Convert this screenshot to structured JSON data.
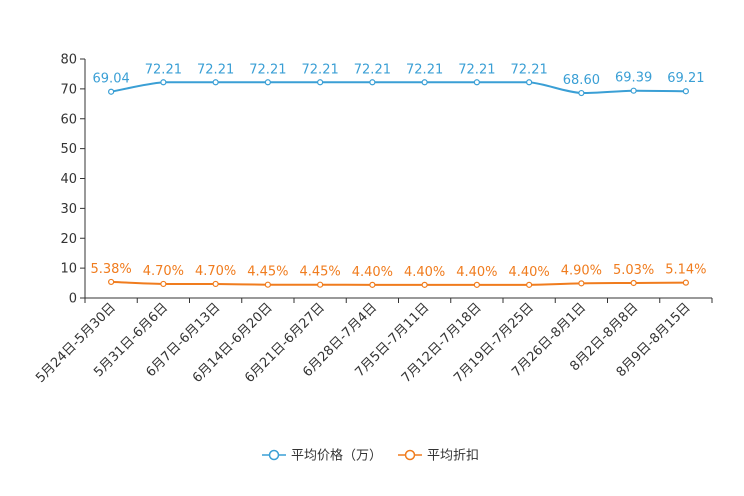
{
  "chart_data": {
    "type": "line",
    "title": "",
    "xlabel": "",
    "ylabel": "",
    "ylim": [
      0,
      80
    ],
    "yticks": [
      0,
      10,
      20,
      30,
      40,
      50,
      60,
      70,
      80
    ],
    "ytick_labels": [
      "0",
      "10",
      "20",
      "30",
      "40",
      "50",
      "60",
      "70",
      "80"
    ],
    "grid": false,
    "legend_position": "bottom-center",
    "categories": [
      "5月24日-5月30日",
      "5月31日-6月6日",
      "6月7日-6月13日",
      "6月14日-6月20日",
      "6月21日-6月27日",
      "6月28日-7月4日",
      "7月5日-7月11日",
      "7月12日-7月18日",
      "7月19日-7月25日",
      "7月26日-8月1日",
      "8月2日-8月8日",
      "8月9日-8月15日"
    ],
    "series": [
      {
        "name": "平均价格（万）",
        "color": "#3a9fd5",
        "values": [
          69.04,
          72.21,
          72.21,
          72.21,
          72.21,
          72.21,
          72.21,
          72.21,
          72.21,
          68.6,
          69.39,
          69.21
        ],
        "labels": [
          "69.04",
          "72.21",
          "72.21",
          "72.21",
          "72.21",
          "72.21",
          "72.21",
          "72.21",
          "72.21",
          "68.60",
          "69.39",
          "69.21"
        ]
      },
      {
        "name": "平均折扣",
        "color": "#f07c1e",
        "values": [
          5.38,
          4.7,
          4.7,
          4.45,
          4.45,
          4.4,
          4.4,
          4.4,
          4.4,
          4.9,
          5.03,
          5.14
        ],
        "labels": [
          "5.38%",
          "4.70%",
          "4.70%",
          "4.45%",
          "4.45%",
          "4.40%",
          "4.40%",
          "4.40%",
          "4.40%",
          "4.90%",
          "5.03%",
          "5.14%"
        ]
      }
    ]
  },
  "legend": {
    "items": [
      {
        "label": "平均价格（万）",
        "color": "#3a9fd5",
        "icon": "circle-line-icon"
      },
      {
        "label": "平均折扣",
        "color": "#f07c1e",
        "icon": "circle-line-icon"
      }
    ]
  }
}
